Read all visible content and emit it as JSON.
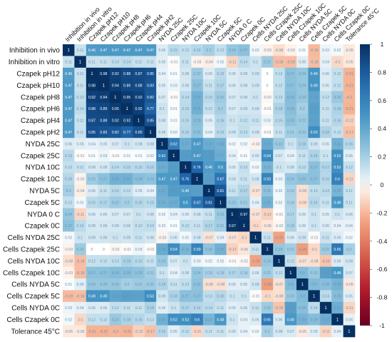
{
  "chart_data": {
    "type": "heatmap",
    "variables": [
      "Inhibition in vivo",
      "Inhibition in vitro",
      "Czapek pH12",
      "Czapek pH10",
      "Czapek pH8",
      "Czapek pH6",
      "Czapek pH4",
      "Czapek pH2",
      "NYDA 25C",
      "Czapek  25C",
      "NYDA 10C",
      "Czapek 10C",
      "NYDA 5C",
      "Czapek 5C",
      "NYDA 0 C",
      "Czapek 0C",
      "Cells NYDA 25C",
      "Cells Czapek 25C",
      "Cells NYDA 10C",
      "Cells Czapek 10C",
      "Cells NYDA 5C",
      "Cells Czapek 5C",
      "Cells NYDA 0C",
      "Cells Czapek 0C",
      "Tolerance 45°C"
    ],
    "column_labels": [
      "Inhibition in vivo",
      "Inhibition in vitro",
      "Czapek pH12",
      "Czapek pH10",
      "Czapek pH8",
      "Czapek pH6",
      "Czapek pH4",
      "Czapek pH2",
      "NYDA 25C",
      "Czapek  25C",
      "NYDA 10C",
      "Czapek 10C",
      "NYDA 5C",
      "Czapek 5C",
      "NYDA 0 C",
      "Czapek 0C",
      "Cells NYDA 25C",
      "Cells Czapek 25C",
      "Cells NYDA 10C",
      "Cells Czapek 10C",
      "Cells NYDA 5C",
      "Cells Czapek 5C",
      "Cells NYDA 0C",
      "Cells Czapek 0C",
      "Tolerance 45°C"
    ],
    "matrix": [
      [
        1,
        0.11,
        0.46,
        0.47,
        0.47,
        0.47,
        0.47,
        0.47,
        0.06,
        0.15,
        0.12,
        0.16,
        0.2,
        0.12,
        0.24,
        0.27,
        0.02,
        -0.03,
        -0.08,
        -0.03,
        0.01,
        -0.19,
        0.03,
        0.02,
        -0.05
      ],
      [
        0.11,
        1,
        0.11,
        0.11,
        0.13,
        0.14,
        0.11,
        0.11,
        0.05,
        -0.01,
        0.11,
        -0.03,
        -0.04,
        0.02,
        -0.11,
        0.14,
        0.1,
        0.22,
        -0.18,
        -0.18,
        0.05,
        -0.18,
        0.04,
        -0.1,
        -0.05
      ],
      [
        0.46,
        0.11,
        1,
        0.98,
        0.92,
        0.88,
        0.87,
        0.85,
        0.04,
        0.01,
        0.08,
        0.22,
        0.06,
        0.15,
        0.06,
        0.08,
        0.09,
        0,
        0.12,
        0.27,
        0.24,
        0.49,
        0.06,
        0.12,
        -0.21
      ],
      [
        0.47,
        0.11,
        0.98,
        1,
        0.94,
        0.89,
        0.88,
        0.83,
        0.05,
        0.03,
        0.08,
        0.27,
        0.11,
        0.17,
        0.06,
        0.08,
        0.09,
        0,
        0.12,
        0.27,
        0.24,
        0.49,
        0.06,
        0.12,
        -0.21
      ],
      [
        0.47,
        0.13,
        0.92,
        0.94,
        1,
        0.95,
        0.92,
        0.82,
        0.07,
        -0.01,
        0.14,
        0.35,
        0.15,
        0.22,
        0.07,
        0.08,
        0.1,
        -0.02,
        0.13,
        0.29,
        0.24,
        0.41,
        0.12,
        0.23,
        -0.2
      ],
      [
        0.47,
        0.14,
        0.88,
        0.89,
        0.95,
        1,
        0.92,
        0.77,
        0.1,
        0.01,
        0.15,
        0.35,
        0.12,
        0.2,
        0.07,
        0.09,
        0.09,
        -0.01,
        0.18,
        0.28,
        0.2,
        0.43,
        0.11,
        0.18,
        -0.21
      ],
      [
        0.47,
        0.11,
        0.87,
        0.88,
        0.92,
        0.92,
        1,
        0.85,
        0.08,
        0.01,
        0.15,
        0.28,
        0.05,
        0.16,
        0.1,
        0.12,
        0.11,
        0.03,
        0.15,
        0.26,
        0.22,
        0.42,
        0.11,
        0.16,
        -0.12
      ],
      [
        0.47,
        0.11,
        0.85,
        0.83,
        0.82,
        0.77,
        0.85,
        1,
        0.08,
        0.02,
        0.16,
        0.26,
        0.04,
        0.15,
        0.08,
        0.13,
        0.08,
        -0.01,
        0.11,
        0.21,
        0.22,
        0.53,
        0.18,
        0.12,
        -0.17
      ],
      [
        0.06,
        0.05,
        0.04,
        0.05,
        0.07,
        0.1,
        0.08,
        0.08,
        1,
        0.62,
        0.37,
        0.47,
        0.37,
        0.35,
        0.02,
        0.02,
        -0.03,
        0.38,
        0.23,
        0.1,
        0.18,
        0.09,
        0.05,
        0.35,
        0.16
      ],
      [
        0.15,
        -0.01,
        0.01,
        0.03,
        -0.01,
        0.01,
        0.01,
        0.02,
        0.62,
        1,
        0.45,
        0.47,
        0.45,
        0.37,
        0.04,
        0.01,
        0.06,
        0.54,
        0.07,
        0.04,
        0.11,
        0.18,
        0.1,
        0.52,
        0.05
      ],
      [
        0.12,
        0.11,
        0.08,
        0.08,
        0.14,
        0.15,
        0.15,
        0.16,
        0.37,
        0.45,
        1,
        0.76,
        0.46,
        0.5,
        0.05,
        0.12,
        0.02,
        0.33,
        0.1,
        0.08,
        0.13,
        0.27,
        0.17,
        0.52,
        0.12
      ],
      [
        0.16,
        -0.03,
        0.22,
        0.27,
        0.35,
        0.35,
        0.28,
        0.26,
        0.47,
        0.47,
        0.76,
        1,
        0.44,
        0.67,
        0.08,
        0.11,
        0.08,
        0.59,
        0.03,
        0.24,
        0.26,
        0.27,
        0.16,
        0.6,
        -0.11
      ],
      [
        0.2,
        -0.04,
        0.06,
        0.11,
        0.15,
        0.12,
        0.05,
        0.04,
        0.37,
        0.45,
        0.46,
        0.44,
        1,
        0.81,
        0.11,
        0.17,
        -0.07,
        0.26,
        0.02,
        0.19,
        -0.08,
        0.13,
        0.14,
        0.33,
        0.11
      ],
      [
        0.12,
        0.02,
        0.15,
        0.17,
        0.22,
        0.2,
        0.16,
        0.15,
        0.35,
        0.37,
        0.5,
        0.67,
        0.81,
        1,
        0.23,
        0.21,
        0.04,
        0.35,
        0.02,
        0.18,
        -0.08,
        0.16,
        0.11,
        0.48,
        0.11
      ],
      [
        0.24,
        -0.11,
        0.06,
        0.06,
        0.07,
        0.07,
        0.1,
        0.08,
        0.02,
        0.04,
        0.05,
        0.08,
        0.11,
        0.23,
        1,
        0.97,
        -0.07,
        -0.12,
        -0.01,
        0.17,
        0.05,
        0.1,
        0.05,
        0.1,
        0.06
      ],
      [
        0.27,
        0.14,
        0.08,
        0.08,
        0.08,
        0.09,
        0.12,
        0.13,
        0.02,
        0.01,
        0.12,
        0.11,
        0.17,
        0.21,
        0.97,
        1,
        -0.1,
        -0.06,
        -0.02,
        0.18,
        0.05,
        0.1,
        0.06,
        0.04,
        0.04
      ],
      [
        0.02,
        0.1,
        0.09,
        0.09,
        0.1,
        0.09,
        0.11,
        0.08,
        -0.03,
        0.06,
        0.02,
        0.08,
        -0.07,
        0.04,
        -0.07,
        -0.1,
        1,
        0.11,
        -0.26,
        0.06,
        0.09,
        -0.01,
        0.11,
        0.06,
        0.02
      ],
      [
        -0.03,
        0.22,
        0,
        0,
        -0.02,
        -0.01,
        0.03,
        -0.01,
        0.38,
        0.54,
        0.33,
        0.59,
        0.26,
        0.35,
        -0.12,
        -0.06,
        0.11,
        1,
        0.24,
        0.21,
        -0.28,
        -0.1,
        0.22,
        0.65,
        0.2
      ],
      [
        -0.08,
        -0.18,
        0.12,
        0.12,
        0.13,
        0.18,
        0.15,
        0.11,
        0.23,
        0.07,
        0.1,
        0.03,
        0.02,
        0.02,
        -0.01,
        -0.02,
        -0.26,
        0.24,
        1,
        0.12,
        -0.07,
        -0.08,
        -0.16,
        0.06,
        0.08
      ],
      [
        -0.03,
        -0.18,
        0.27,
        0.27,
        0.29,
        0.28,
        0.26,
        0.21,
        0.1,
        0.04,
        0.08,
        0.24,
        0.19,
        0.18,
        0.17,
        0.18,
        0.06,
        0.21,
        0.12,
        1,
        0.3,
        0.23,
        0.44,
        0.48,
        0.07
      ],
      [
        0.01,
        0.05,
        0.24,
        0.24,
        0.24,
        0.2,
        0.22,
        0.22,
        0.18,
        0.11,
        0.13,
        0.26,
        -0.08,
        -0.08,
        0.05,
        0.05,
        0.09,
        -0.28,
        -0.07,
        0.3,
        1,
        0.3,
        0.28,
        0.34,
        -0.05
      ],
      [
        -0.19,
        -0.18,
        0.49,
        0.49,
        0.41,
        0.43,
        0.42,
        0.53,
        0.09,
        0.18,
        0.27,
        0.27,
        0.13,
        0.16,
        0.1,
        0.1,
        -0.01,
        -0.1,
        -0.08,
        0.23,
        0.3,
        1,
        0.14,
        0.29,
        0.05
      ],
      [
        0.03,
        0.04,
        0.06,
        0.06,
        0.12,
        0.11,
        0.11,
        0.18,
        0.05,
        0.1,
        0.17,
        0.16,
        0.14,
        0.11,
        0.05,
        0.06,
        0.11,
        0.22,
        -0.16,
        0.44,
        0.28,
        0.14,
        1,
        0.37,
        -0.11
      ],
      [
        0.02,
        -0.1,
        0.12,
        0.12,
        0.23,
        0.18,
        0.16,
        0.12,
        0.35,
        0.52,
        0.52,
        0.6,
        0.33,
        0.48,
        0.1,
        0.04,
        0.06,
        0.65,
        0.06,
        0.48,
        0.34,
        0.29,
        0.37,
        1,
        0.04
      ],
      [
        -0.05,
        -0.05,
        -0.21,
        -0.21,
        -0.2,
        -0.21,
        -0.12,
        -0.17,
        0.16,
        0.05,
        0.12,
        -0.11,
        0.11,
        0.11,
        0.06,
        0.04,
        0.02,
        0.2,
        0.08,
        0.07,
        -0.05,
        0.05,
        -0.11,
        0.04,
        1
      ]
    ],
    "colorbar": {
      "ticks": [
        1,
        0.8,
        0.6,
        0.4,
        0.2,
        0,
        -0.2,
        -0.4,
        -0.6,
        -0.8,
        -1
      ],
      "tick_labels": [
        "1",
        "0.8",
        "0.6",
        "0.4",
        "0.2",
        "0",
        "-0.2",
        "-0.4",
        "-0.6",
        "-0.8",
        "-1"
      ],
      "range": [
        -1,
        1
      ],
      "colors": {
        "negative": "#67001f",
        "mid_negative": "#f4a582",
        "zero": "#ffffff",
        "mid_positive": "#4393c3",
        "positive": "#053061"
      }
    },
    "grid": false
  }
}
